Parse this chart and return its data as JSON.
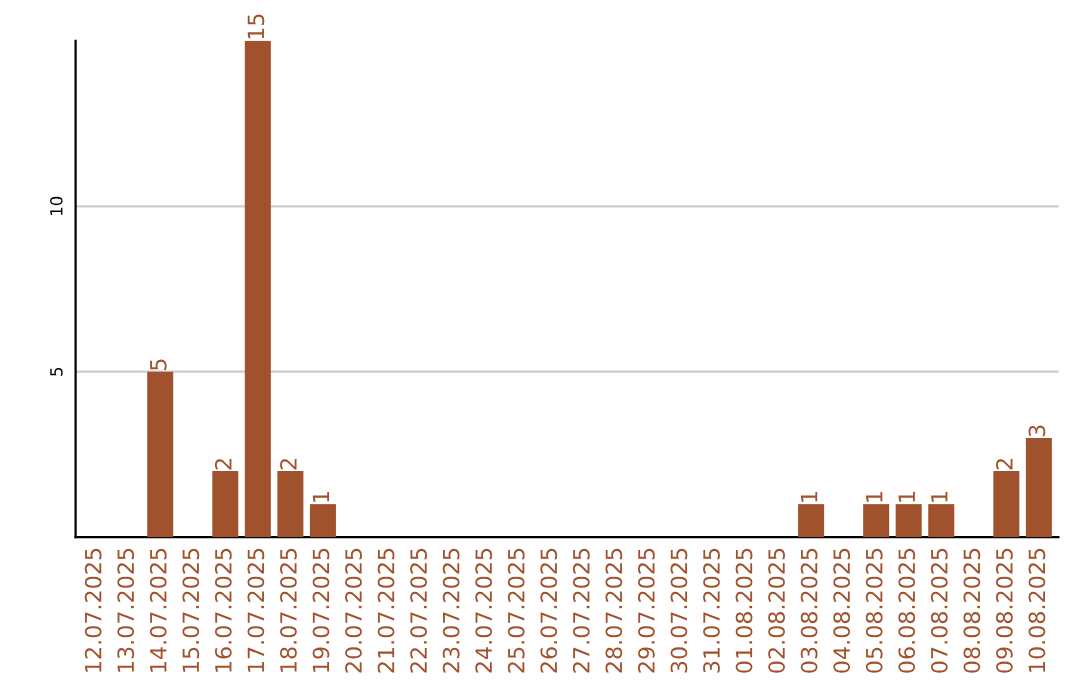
{
  "chart_data": {
    "type": "bar",
    "categories": [
      "12.07.2025",
      "13.07.2025",
      "14.07.2025",
      "15.07.2025",
      "16.07.2025",
      "17.07.2025",
      "18.07.2025",
      "19.07.2025",
      "20.07.2025",
      "21.07.2025",
      "22.07.2025",
      "23.07.2025",
      "24.07.2025",
      "25.07.2025",
      "26.07.2025",
      "27.07.2025",
      "28.07.2025",
      "29.07.2025",
      "30.07.2025",
      "31.07.2025",
      "01.08.2025",
      "02.08.2025",
      "03.08.2025",
      "04.08.2025",
      "05.08.2025",
      "06.08.2025",
      "07.08.2025",
      "08.08.2025",
      "09.08.2025",
      "10.08.2025"
    ],
    "values": [
      0,
      0,
      5,
      0,
      2,
      15,
      2,
      1,
      0,
      0,
      0,
      0,
      0,
      0,
      0,
      0,
      0,
      0,
      0,
      0,
      0,
      0,
      1,
      0,
      1,
      1,
      1,
      0,
      2,
      3
    ],
    "value_labels": [
      null,
      null,
      "5",
      null,
      "2",
      "15",
      "2",
      "1",
      null,
      null,
      null,
      null,
      null,
      null,
      null,
      null,
      null,
      null,
      null,
      null,
      null,
      null,
      "1",
      null,
      "1",
      "1",
      "1",
      null,
      "2",
      "3"
    ],
    "color": "#a0522d",
    "ylim": [
      0,
      15
    ],
    "yticks": [
      5,
      10
    ],
    "grid": "y"
  }
}
